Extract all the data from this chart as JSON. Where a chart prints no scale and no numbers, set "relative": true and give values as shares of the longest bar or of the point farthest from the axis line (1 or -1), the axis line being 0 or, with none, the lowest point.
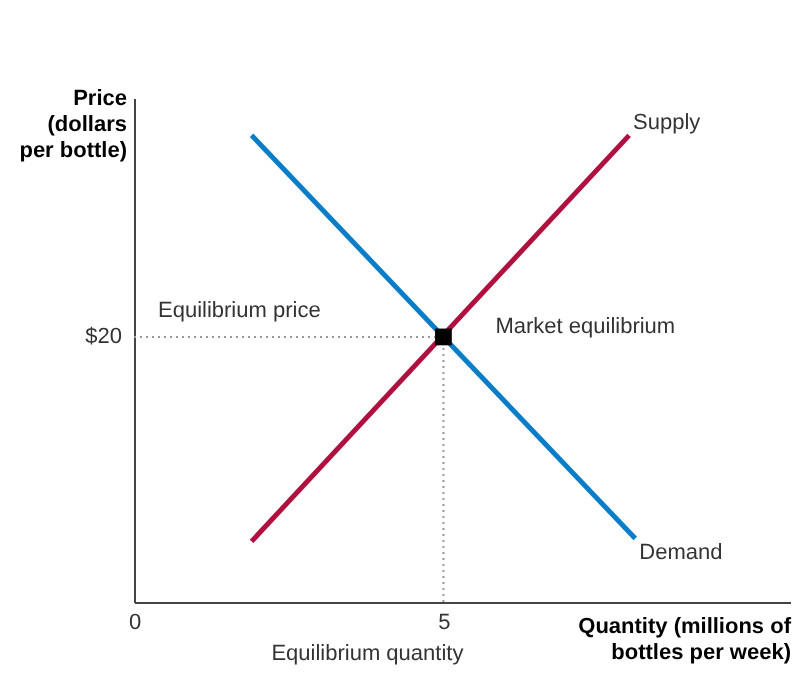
{
  "chart_data": {
    "type": "line",
    "xlabel": "Quantity (millions of bottles per week)",
    "ylabel": "Price (dollars per bottle)",
    "relative": true,
    "xlim": [
      0,
      10.6
    ],
    "xticks": [
      0,
      5
    ],
    "grid": false,
    "legend": false,
    "line_style": "solid",
    "series": [
      {
        "name": "Supply",
        "color": "#b0103f",
        "x": [
          1.9,
          8.0
        ],
        "values": [
          0.13,
          1
        ]
      },
      {
        "name": "Demand",
        "color": "#0a7dc8",
        "x": [
          1.9,
          8.1
        ],
        "values": [
          1,
          0.136
        ]
      },
      {
        "type": "scatter",
        "marker": "square",
        "color": "#000000",
        "x": [
          5
        ],
        "values": [
          0.568
        ]
      }
    ],
    "ref_lines": [
      {
        "axis": "y",
        "value": 0.568,
        "label": "Equilibrium price",
        "color": "#999999",
        "line_style": "dotted"
      },
      {
        "axis": "x",
        "value": 5,
        "label": "Equilibrium quantity",
        "color": "#999999",
        "line_style": "dotted"
      }
    ],
    "annotations": [
      {
        "text": "Market equilibrium",
        "x": 5,
        "y": 0.568
      },
      {
        "text": "$20",
        "x": 0,
        "y": 0.568
      }
    ]
  }
}
